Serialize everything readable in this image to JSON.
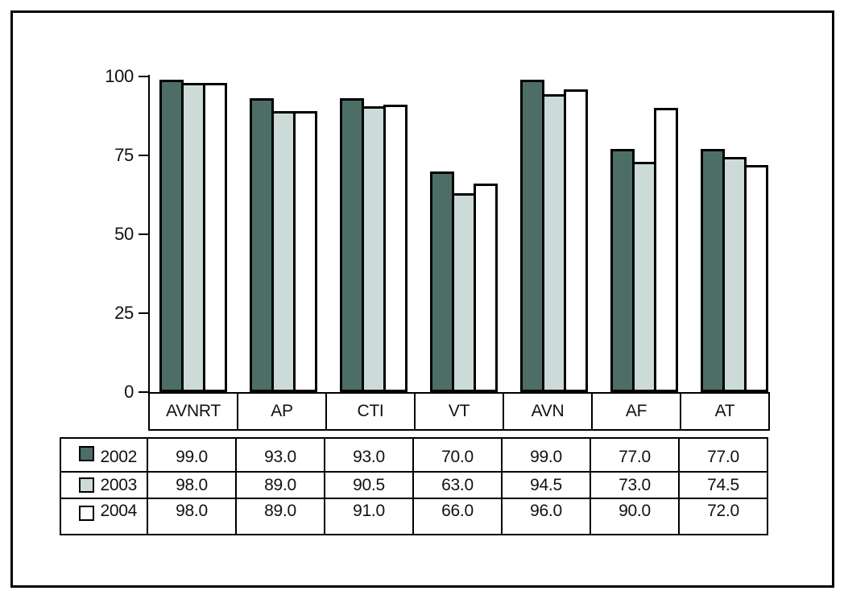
{
  "chart_data": {
    "type": "bar",
    "title": "",
    "xlabel": "",
    "ylabel": "",
    "categories": [
      "AVNRT",
      "AP",
      "CTI",
      "VT",
      "AVN",
      "AF",
      "AT"
    ],
    "series": [
      {
        "name": "2002",
        "color": "#4c6e66",
        "values": [
          99.0,
          93.0,
          93.0,
          70.0,
          99.0,
          77.0,
          77.0
        ]
      },
      {
        "name": "2003",
        "color": "#ccdbd7",
        "values": [
          98.0,
          89.0,
          90.5,
          63.0,
          94.5,
          73.0,
          74.5
        ]
      },
      {
        "name": "2004",
        "color": "#ffffff",
        "values": [
          98.0,
          89.0,
          91.0,
          66.0,
          96.0,
          90.0,
          72.0
        ]
      }
    ],
    "ylim": [
      0,
      100
    ],
    "y_ticks": [
      0,
      25,
      50,
      75,
      100
    ],
    "grid": false,
    "legend_position": "data-table-left-column",
    "value_format": "one-decimal",
    "bar_outline_color": "#000000",
    "frame_color": "#000000",
    "background_color": "#ffffff"
  }
}
